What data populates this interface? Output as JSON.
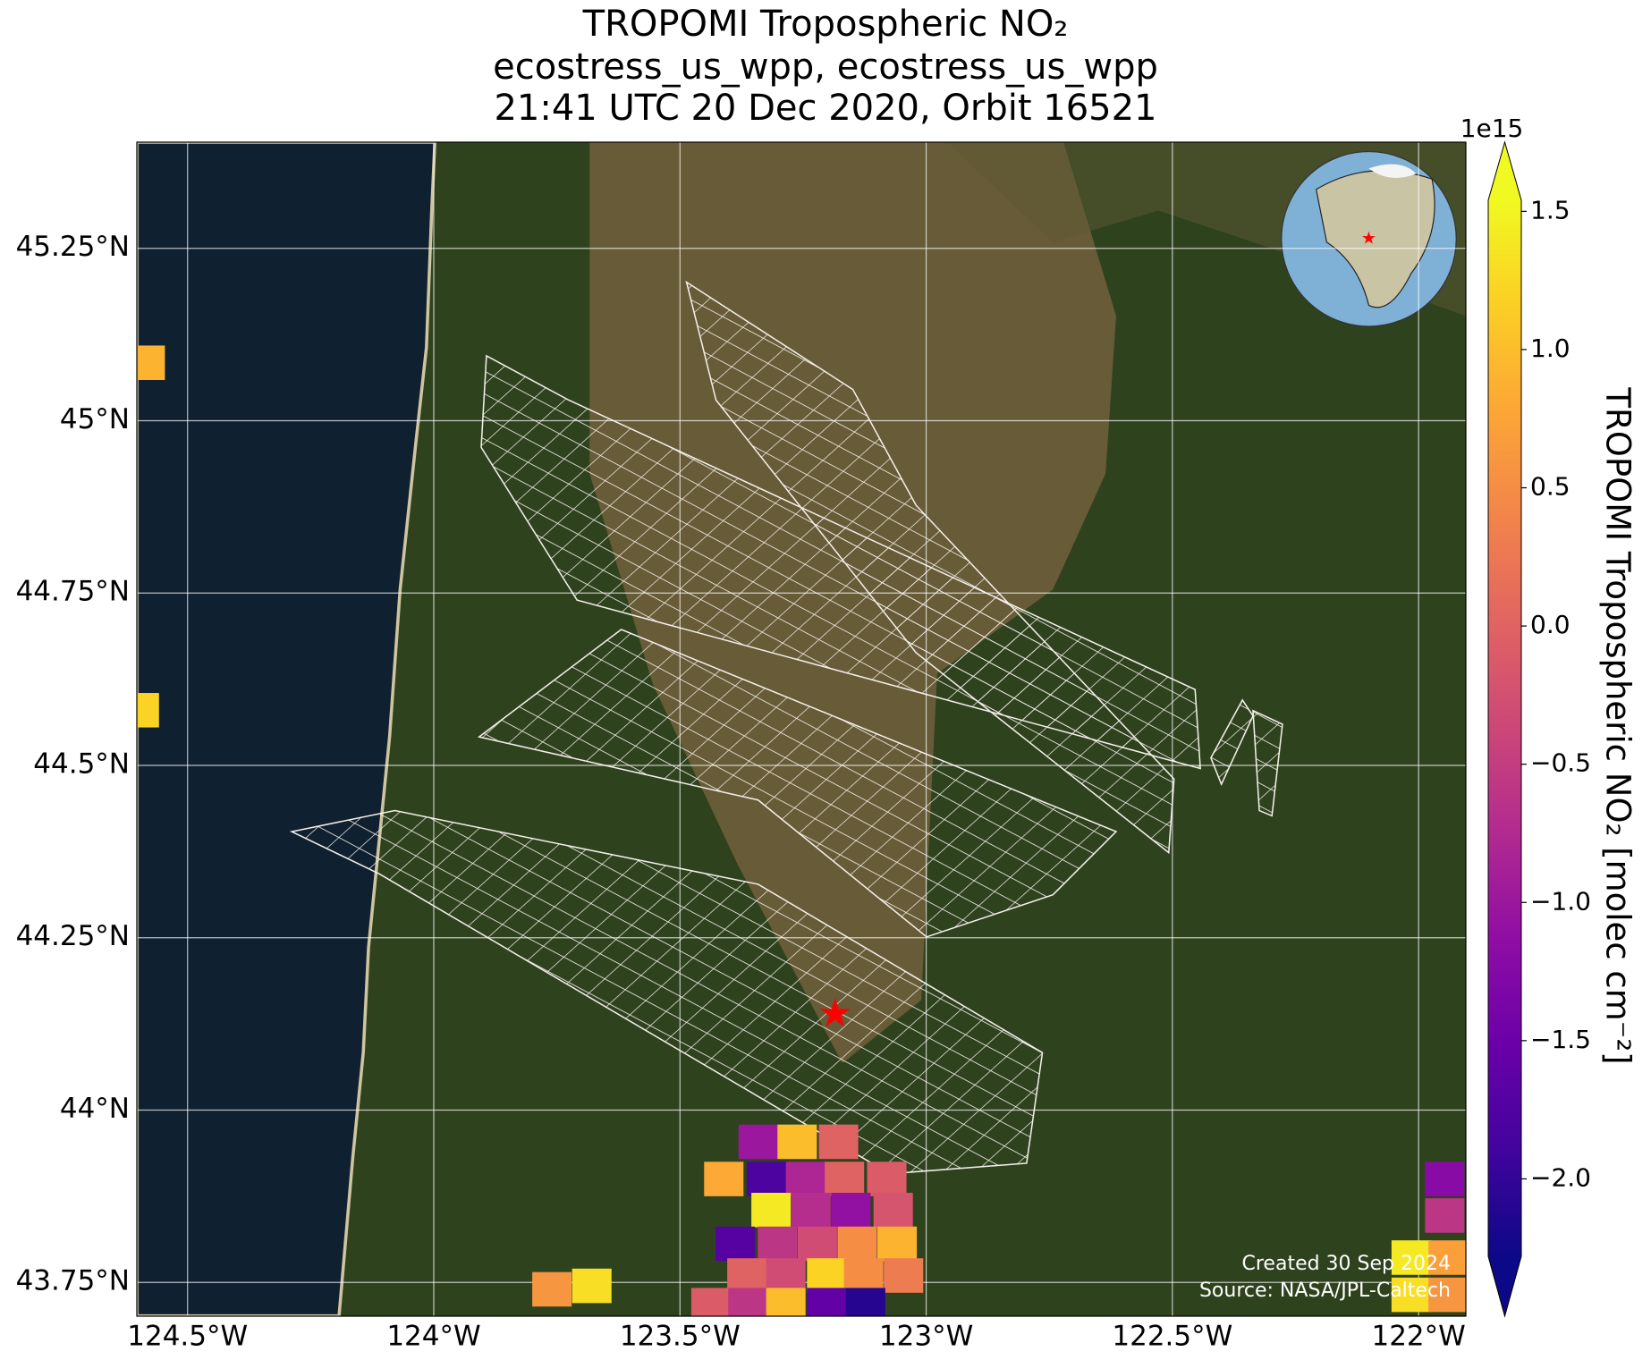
{
  "chart_data": {
    "type": "map",
    "title": "TROPOMI Tropospheric NO₂",
    "subtitle": [
      "ecostress_us_wpp, ecostress_us_wpp",
      "21:41 UTC 20 Dec 2020, Orbit 16521"
    ],
    "xlim": [
      -124.603,
      -121.904
    ],
    "ylim": [
      43.701,
      45.404
    ],
    "xticks": [
      {
        "value": -124.5,
        "label": "124.5°W"
      },
      {
        "value": -124,
        "label": "124°W"
      },
      {
        "value": -123.5,
        "label": "123.5°W"
      },
      {
        "value": -123,
        "label": "123°W"
      },
      {
        "value": -122.5,
        "label": "122.5°W"
      },
      {
        "value": -122,
        "label": "122°W"
      }
    ],
    "yticks": [
      {
        "value": 45.25,
        "label": "45.25°N"
      },
      {
        "value": 45,
        "label": "45°N"
      },
      {
        "value": 44.75,
        "label": "44.75°N"
      },
      {
        "value": 44.5,
        "label": "44.5°N"
      },
      {
        "value": 44.25,
        "label": "44.25°N"
      },
      {
        "value": 44,
        "label": "44°N"
      },
      {
        "value": 43.75,
        "label": "43.75°N"
      }
    ],
    "grid": true,
    "colorbar": {
      "label": "TROPOMI Tropospheric NO₂ [molec cm⁻²]",
      "offset_label": "1e15",
      "colormap": "plasma",
      "lim": [
        -2.28,
        1.54
      ],
      "ticks": [
        {
          "value": -2.0,
          "label": "−2.0"
        },
        {
          "value": -1.5,
          "label": "−1.5"
        },
        {
          "value": -1.0,
          "label": "−1.0"
        },
        {
          "value": -0.5,
          "label": "−0.5"
        },
        {
          "value": 0.0,
          "label": "0.0"
        },
        0.5,
        {
          "value": 1.0,
          "label": "1.0"
        },
        1.5
      ]
    },
    "cells": [
      {
        "lon": -123.341,
        "lat": 43.954,
        "value": -1.0
      },
      {
        "lon": -123.262,
        "lat": 43.954,
        "value": 1.0
      },
      {
        "lon": -123.178,
        "lat": 43.954,
        "value": 0.0
      },
      {
        "lon": -123.411,
        "lat": 43.9,
        "value": 0.8
      },
      {
        "lon": -123.324,
        "lat": 43.9,
        "value": -1.8
      },
      {
        "lon": -123.245,
        "lat": 43.9,
        "value": -0.8
      },
      {
        "lon": -123.166,
        "lat": 43.9,
        "value": 0.0
      },
      {
        "lon": -123.08,
        "lat": 43.9,
        "value": -0.1
      },
      {
        "lon": -123.315,
        "lat": 43.855,
        "value": 1.4
      },
      {
        "lon": -123.234,
        "lat": 43.855,
        "value": -0.7
      },
      {
        "lon": -123.153,
        "lat": 43.855,
        "value": -1.1
      },
      {
        "lon": -123.067,
        "lat": 43.855,
        "value": -0.2
      },
      {
        "lon": -123.388,
        "lat": 43.806,
        "value": -1.7
      },
      {
        "lon": -123.302,
        "lat": 43.806,
        "value": -0.6
      },
      {
        "lon": -123.221,
        "lat": 43.806,
        "value": -0.3
      },
      {
        "lon": -123.14,
        "lat": 43.806,
        "value": 0.5
      },
      {
        "lon": -123.059,
        "lat": 43.806,
        "value": 0.9
      },
      {
        "lon": -123.364,
        "lat": 43.76,
        "value": 0.0
      },
      {
        "lon": -123.285,
        "lat": 43.76,
        "value": -0.3
      },
      {
        "lon": -123.202,
        "lat": 43.76,
        "value": 1.2
      },
      {
        "lon": -123.127,
        "lat": 43.76,
        "value": 0.5
      },
      {
        "lon": -123.046,
        "lat": 43.76,
        "value": 0.3
      },
      {
        "lon": -123.437,
        "lat": 43.717,
        "value": -0.1
      },
      {
        "lon": -123.362,
        "lat": 43.717,
        "value": -0.6
      },
      {
        "lon": -123.285,
        "lat": 43.717,
        "value": 1.0
      },
      {
        "lon": -123.202,
        "lat": 43.717,
        "value": -1.6
      },
      {
        "lon": -123.123,
        "lat": 43.717,
        "value": -2.1
      },
      {
        "lon": -123.76,
        "lat": 43.74,
        "value": 0.6
      },
      {
        "lon": -123.679,
        "lat": 43.745,
        "value": 1.3
      },
      {
        "lon": -124.586,
        "lat": 45.084,
        "value": 0.9
      },
      {
        "lon": -124.598,
        "lat": 44.58,
        "value": 1.2
      },
      {
        "lon": -121.947,
        "lat": 43.9,
        "value": -1.2
      },
      {
        "lon": -121.947,
        "lat": 43.847,
        "value": -0.6
      },
      {
        "lon": -122.015,
        "lat": 43.786,
        "value": 1.4
      },
      {
        "lon": -121.94,
        "lat": 43.786,
        "value": 0.7
      },
      {
        "lon": -122.015,
        "lat": 43.732,
        "value": 1.3
      },
      {
        "lon": -121.94,
        "lat": 43.732,
        "value": 0.6
      }
    ],
    "target_site": {
      "lon": -123.185,
      "lat": 44.137,
      "color": "red"
    },
    "credits": [
      "Created 30 Sep 2024",
      "Source: NASA/JPL-Caltech"
    ]
  }
}
